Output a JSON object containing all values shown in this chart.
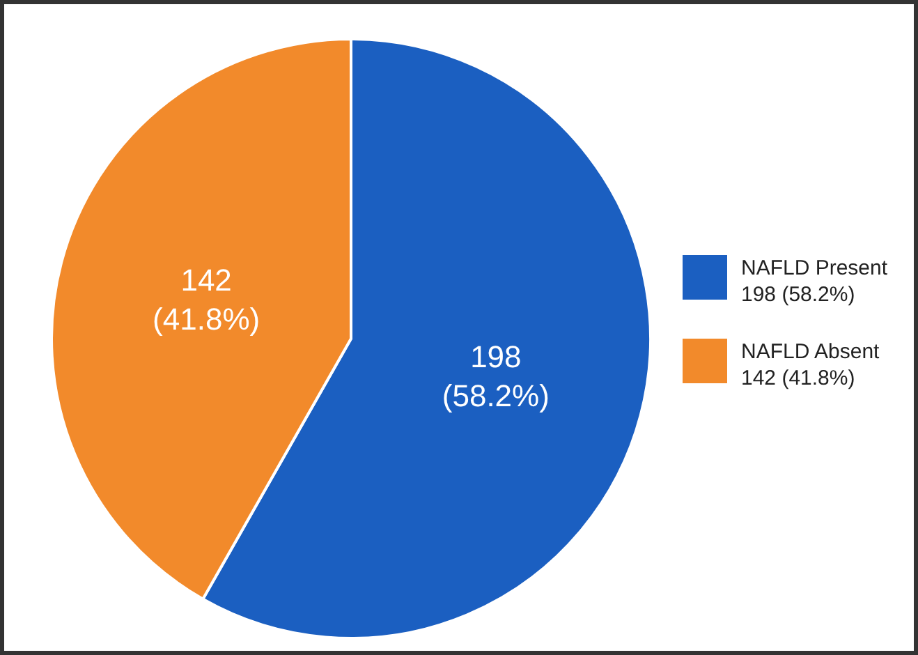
{
  "chart_data": {
    "type": "pie",
    "categories": [
      "NAFLD Present",
      "NAFLD Absent"
    ],
    "values": [
      198,
      142
    ],
    "colors": [
      "#1b5fc1",
      "#f28a2b"
    ],
    "value_labels": [
      "198 (58.2%)",
      "142 (41.8%)"
    ],
    "legend": "right"
  }
}
